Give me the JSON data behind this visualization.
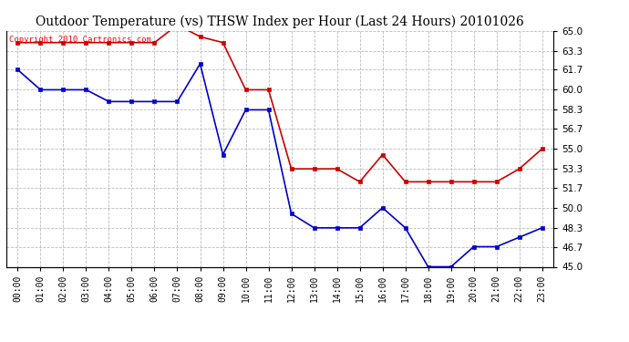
{
  "title": "Outdoor Temperature (vs) THSW Index per Hour (Last 24 Hours) 20101026",
  "copyright_text": "Copyright 2010 Cartronics.com",
  "hours": [
    "00:00",
    "01:00",
    "02:00",
    "03:00",
    "04:00",
    "05:00",
    "06:00",
    "07:00",
    "08:00",
    "09:00",
    "10:00",
    "11:00",
    "12:00",
    "13:00",
    "14:00",
    "15:00",
    "16:00",
    "17:00",
    "18:00",
    "19:00",
    "20:00",
    "21:00",
    "22:00",
    "23:00"
  ],
  "temp_red": [
    64.0,
    64.0,
    64.0,
    64.0,
    64.0,
    64.0,
    64.0,
    65.5,
    64.5,
    64.0,
    60.0,
    60.0,
    53.3,
    53.3,
    53.3,
    52.2,
    54.5,
    52.2,
    52.2,
    52.2,
    52.2,
    52.2,
    53.3,
    55.0
  ],
  "thsw_blue": [
    61.7,
    60.0,
    60.0,
    60.0,
    59.0,
    59.0,
    59.0,
    59.0,
    62.2,
    54.5,
    58.3,
    58.3,
    49.5,
    48.3,
    48.3,
    48.3,
    50.0,
    48.3,
    45.0,
    45.0,
    46.7,
    46.7,
    47.5,
    48.3
  ],
  "ylim_min": 45.0,
  "ylim_max": 65.0,
  "yticks": [
    45.0,
    46.7,
    48.3,
    50.0,
    51.7,
    53.3,
    55.0,
    56.7,
    58.3,
    60.0,
    61.7,
    63.3,
    65.0
  ],
  "ytick_labels": [
    "45.0",
    "46.7",
    "48.3",
    "50.0",
    "51.7",
    "53.3",
    "55.0",
    "56.7",
    "58.3",
    "60.0",
    "61.7",
    "63.3",
    "65.0"
  ],
  "red_color": "#cc0000",
  "blue_color": "#0000cc",
  "bg_color": "#ffffff",
  "grid_color": "#bbbbbb",
  "title_fontsize": 10,
  "copyright_fontsize": 6.5,
  "tick_fontsize": 7.5,
  "xtick_fontsize": 7
}
